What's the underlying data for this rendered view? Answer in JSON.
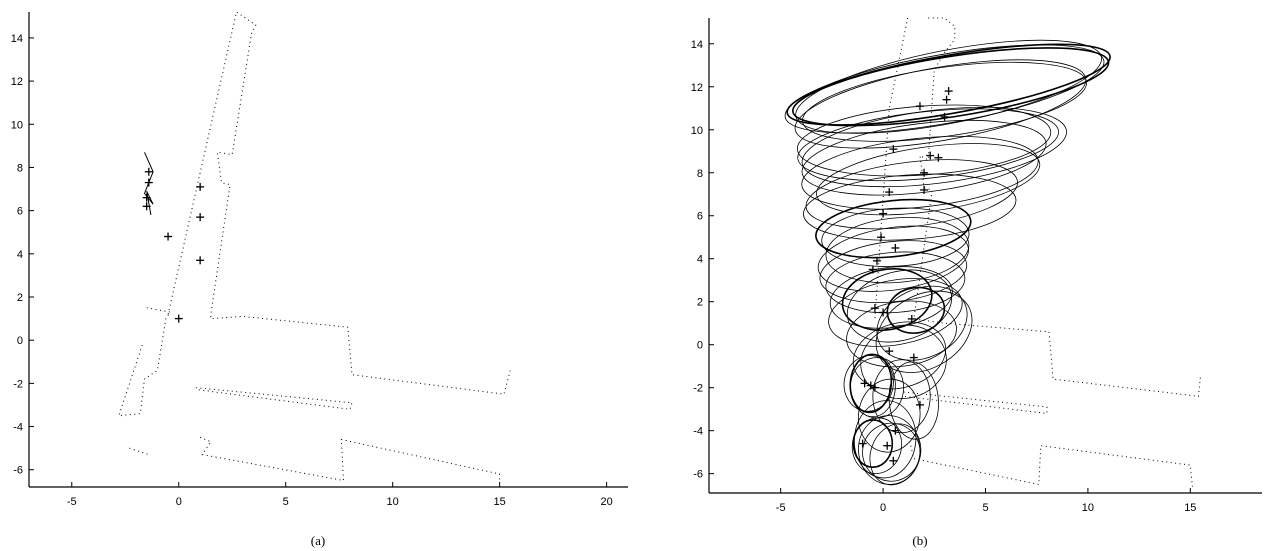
{
  "chart_data": [
    {
      "type": "scatter",
      "caption": "(a)",
      "xlim": [
        -7,
        21
      ],
      "ylim": [
        -6.8,
        15.2
      ],
      "xticks": [
        -5,
        0,
        5,
        10,
        15,
        20
      ],
      "yticks": [
        -6,
        -4,
        -2,
        0,
        2,
        4,
        6,
        8,
        10,
        12,
        14
      ],
      "grid": false,
      "landmarks": [
        {
          "x": 0.0,
          "y": 1.0
        },
        {
          "x": -0.5,
          "y": 4.8
        },
        {
          "x": 1.0,
          "y": 3.7
        },
        {
          "x": 1.0,
          "y": 5.7
        },
        {
          "x": 1.0,
          "y": 7.1
        },
        {
          "x": -1.5,
          "y": 6.2
        },
        {
          "x": -1.5,
          "y": 6.6
        },
        {
          "x": -1.4,
          "y": 7.3
        },
        {
          "x": -1.4,
          "y": 7.8
        }
      ],
      "walls": [
        [
          [
            -0.5,
            1.2
          ],
          [
            2.7,
            15.2
          ],
          [
            3.6,
            14.6
          ],
          [
            3.4,
            14.2
          ],
          [
            2.5,
            8.6
          ],
          [
            1.8,
            8.7
          ],
          [
            2.0,
            7.3
          ],
          [
            2.4,
            7.2
          ],
          [
            1.5,
            1.2
          ],
          [
            1.5,
            1.0
          ],
          [
            3.0,
            1.1
          ],
          [
            7.9,
            0.6
          ],
          [
            8.1,
            -1.6
          ],
          [
            15.2,
            -2.5
          ],
          [
            15.5,
            -1.4
          ]
        ],
        [
          [
            -1.5,
            1.5
          ],
          [
            -0.4,
            1.3
          ],
          [
            -0.6,
            1.0
          ],
          [
            -1.0,
            -1.4
          ],
          [
            -1.6,
            -1.8
          ],
          [
            -1.8,
            -3.4
          ],
          [
            -2.8,
            -3.5
          ],
          [
            -1.7,
            -0.2
          ]
        ],
        [
          [
            0.8,
            -2.2
          ],
          [
            8.1,
            -2.9
          ],
          [
            8.0,
            -3.2
          ],
          [
            0.9,
            -2.3
          ]
        ],
        [
          [
            1.0,
            -4.5
          ],
          [
            1.5,
            -4.7
          ],
          [
            1.1,
            -5.3
          ],
          [
            7.7,
            -6.5
          ],
          [
            7.6,
            -4.6
          ],
          [
            15.0,
            -6.2
          ],
          [
            15.0,
            -6.6
          ]
        ],
        [
          [
            -2.3,
            -5.0
          ],
          [
            -1.4,
            -5.3
          ]
        ]
      ],
      "streaks": [
        [
          [
            -1.6,
            8.7
          ],
          [
            -1.2,
            7.8
          ],
          [
            -1.6,
            6.8
          ],
          [
            -1.2,
            6.3
          ],
          [
            -1.5,
            6.9
          ],
          [
            -1.3,
            5.8
          ]
        ]
      ]
    },
    {
      "type": "scatter",
      "caption": "(b)",
      "xlim": [
        -8.5,
        18.5
      ],
      "ylim": [
        -6.9,
        15.2
      ],
      "xticks": [
        -5,
        0,
        5,
        10,
        15
      ],
      "yticks": [
        -6,
        -4,
        -2,
        0,
        2,
        4,
        6,
        8,
        10,
        12,
        14
      ],
      "grid": false,
      "landmarks": [
        {
          "x": 3.2,
          "y": 11.8
        },
        {
          "x": 3.1,
          "y": 11.4
        },
        {
          "x": 1.8,
          "y": 11.1
        },
        {
          "x": 3.0,
          "y": 10.6
        },
        {
          "x": 0.5,
          "y": 9.1
        },
        {
          "x": 2.3,
          "y": 8.8
        },
        {
          "x": 2.7,
          "y": 8.7
        },
        {
          "x": 2.0,
          "y": 8.0
        },
        {
          "x": 0.3,
          "y": 7.1
        },
        {
          "x": 2.0,
          "y": 7.2
        },
        {
          "x": 0.0,
          "y": 6.1
        },
        {
          "x": -0.1,
          "y": 5.0
        },
        {
          "x": 0.6,
          "y": 4.5
        },
        {
          "x": -0.3,
          "y": 3.9
        },
        {
          "x": -0.5,
          "y": 3.5
        },
        {
          "x": 0.0,
          "y": 1.5
        },
        {
          "x": -0.4,
          "y": 1.7
        },
        {
          "x": 1.4,
          "y": 1.2
        },
        {
          "x": 0.3,
          "y": -0.3
        },
        {
          "x": 1.5,
          "y": -0.6
        },
        {
          "x": -0.9,
          "y": -1.8
        },
        {
          "x": -0.6,
          "y": -1.9
        },
        {
          "x": -0.4,
          "y": -2.0
        },
        {
          "x": 1.8,
          "y": -2.8
        },
        {
          "x": -1.0,
          "y": -4.6
        },
        {
          "x": 0.2,
          "y": -4.7
        },
        {
          "x": 0.5,
          "y": -5.4
        },
        {
          "x": 0.6,
          "y": -4.0
        }
      ],
      "ellipses": [
        {
          "cx": 3.2,
          "cy": 12.1,
          "rx": 8.0,
          "ry": 1.35,
          "angle": -10,
          "bold": true
        },
        {
          "cx": 3.3,
          "cy": 12.0,
          "rx": 7.8,
          "ry": 1.4,
          "angle": -9,
          "bold": true
        },
        {
          "cx": 3.0,
          "cy": 11.9,
          "rx": 7.9,
          "ry": 1.6,
          "angle": -10,
          "bold": false
        },
        {
          "cx": 3.2,
          "cy": 12.0,
          "rx": 7.6,
          "ry": 1.7,
          "angle": -11,
          "bold": false
        },
        {
          "cx": 3.0,
          "cy": 11.3,
          "rx": 7.0,
          "ry": 1.6,
          "angle": -8,
          "bold": false
        },
        {
          "cx": 2.8,
          "cy": 11.2,
          "rx": 7.2,
          "ry": 1.7,
          "angle": -10,
          "bold": false
        },
        {
          "cx": 2.2,
          "cy": 9.3,
          "rx": 6.4,
          "ry": 1.55,
          "angle": -6,
          "bold": false
        },
        {
          "cx": 2.5,
          "cy": 9.2,
          "rx": 6.5,
          "ry": 1.7,
          "angle": -7,
          "bold": false
        },
        {
          "cx": 2.0,
          "cy": 9.5,
          "rx": 6.2,
          "ry": 1.6,
          "angle": -4,
          "bold": false
        },
        {
          "cx": 2.0,
          "cy": 8.7,
          "rx": 6.0,
          "ry": 1.6,
          "angle": -7,
          "bold": false
        },
        {
          "cx": 1.8,
          "cy": 8.0,
          "rx": 5.8,
          "ry": 1.6,
          "angle": -6,
          "bold": false
        },
        {
          "cx": 2.2,
          "cy": 7.7,
          "rx": 5.5,
          "ry": 1.5,
          "angle": -8,
          "bold": false
        },
        {
          "cx": 1.4,
          "cy": 7.0,
          "rx": 5.2,
          "ry": 1.5,
          "angle": -7,
          "bold": false
        },
        {
          "cx": 1.3,
          "cy": 6.4,
          "rx": 5.2,
          "ry": 1.5,
          "angle": -4,
          "bold": false
        },
        {
          "cx": 0.5,
          "cy": 5.4,
          "rx": 3.8,
          "ry": 1.3,
          "angle": -6,
          "bold": true
        },
        {
          "cx": 0.6,
          "cy": 5.0,
          "rx": 3.6,
          "ry": 1.35,
          "angle": -3,
          "bold": false
        },
        {
          "cx": 0.7,
          "cy": 4.4,
          "rx": 3.5,
          "ry": 1.5,
          "angle": -5,
          "bold": false
        },
        {
          "cx": 0.5,
          "cy": 4.0,
          "rx": 3.7,
          "ry": 1.45,
          "angle": -8,
          "bold": false
        },
        {
          "cx": 0.5,
          "cy": 3.4,
          "rx": 3.6,
          "ry": 1.4,
          "angle": -6,
          "bold": false
        },
        {
          "cx": 0.6,
          "cy": 2.9,
          "rx": 3.4,
          "ry": 1.4,
          "angle": -4,
          "bold": false
        },
        {
          "cx": 0.4,
          "cy": 2.2,
          "rx": 3.0,
          "ry": 1.4,
          "angle": -7,
          "bold": false
        },
        {
          "cx": 0.2,
          "cy": 2.1,
          "rx": 2.2,
          "ry": 1.4,
          "angle": -10,
          "bold": true
        },
        {
          "cx": 0.8,
          "cy": 1.8,
          "rx": 2.6,
          "ry": 1.6,
          "angle": -15,
          "bold": false
        },
        {
          "cx": 0.6,
          "cy": 1.5,
          "rx": 3.3,
          "ry": 1.5,
          "angle": -10,
          "bold": false
        },
        {
          "cx": 1.6,
          "cy": 1.6,
          "rx": 1.4,
          "ry": 1.05,
          "angle": -10,
          "bold": true
        },
        {
          "cx": 1.9,
          "cy": 1.0,
          "rx": 2.3,
          "ry": 1.6,
          "angle": -25,
          "bold": false
        },
        {
          "cx": 2.0,
          "cy": 0.6,
          "rx": 2.5,
          "ry": 1.7,
          "angle": -30,
          "bold": false
        },
        {
          "cx": 0.9,
          "cy": 0.5,
          "rx": 2.7,
          "ry": 1.5,
          "angle": -8,
          "bold": false
        },
        {
          "cx": 0.8,
          "cy": -0.5,
          "rx": 2.3,
          "ry": 1.5,
          "angle": -15,
          "bold": false
        },
        {
          "cx": 1.0,
          "cy": -0.8,
          "rx": 2.1,
          "ry": 1.7,
          "angle": -10,
          "bold": false
        },
        {
          "cx": -0.6,
          "cy": -1.8,
          "rx": 1.0,
          "ry": 1.35,
          "angle": 5,
          "bold": true
        },
        {
          "cx": -0.5,
          "cy": -1.9,
          "rx": 1.1,
          "ry": 1.45,
          "angle": 0,
          "bold": false
        },
        {
          "cx": -0.7,
          "cy": -1.8,
          "rx": 1.2,
          "ry": 1.3,
          "angle": 10,
          "bold": false
        },
        {
          "cx": -0.3,
          "cy": -2.0,
          "rx": 1.3,
          "ry": 1.4,
          "angle": 0,
          "bold": false
        },
        {
          "cx": 1.5,
          "cy": -2.6,
          "rx": 1.2,
          "ry": 1.8,
          "angle": -5,
          "bold": false
        },
        {
          "cx": 0.9,
          "cy": -2.4,
          "rx": 1.4,
          "ry": 1.7,
          "angle": 0,
          "bold": false
        },
        {
          "cx": 0.3,
          "cy": -3.3,
          "rx": 1.5,
          "ry": 1.7,
          "angle": 8,
          "bold": false
        },
        {
          "cx": -0.5,
          "cy": -4.6,
          "rx": 0.95,
          "ry": 1.1,
          "angle": 0,
          "bold": true
        },
        {
          "cx": -0.3,
          "cy": -4.7,
          "rx": 1.2,
          "ry": 1.3,
          "angle": 10,
          "bold": false
        },
        {
          "cx": 0.4,
          "cy": -5.0,
          "rx": 1.4,
          "ry": 1.35,
          "angle": 15,
          "bold": false
        },
        {
          "cx": 0.6,
          "cy": -5.1,
          "rx": 1.2,
          "ry": 1.45,
          "angle": 20,
          "bold": false
        },
        {
          "cx": 0.1,
          "cy": -4.4,
          "rx": 1.5,
          "ry": 1.8,
          "angle": 5,
          "bold": false
        },
        {
          "cx": 0.3,
          "cy": -4.9,
          "rx": 1.5,
          "ry": 1.6,
          "angle": -5,
          "bold": false
        }
      ],
      "walls": [
        [
          [
            2.2,
            15.2
          ],
          [
            3.0,
            15.2
          ],
          [
            3.5,
            14.8
          ],
          [
            3.5,
            14.2
          ],
          [
            3.0,
            13.6
          ],
          [
            2.5,
            12.8
          ],
          [
            2.2,
            8.6
          ],
          [
            1.8,
            8.8
          ],
          [
            2.0,
            7.3
          ],
          [
            2.4,
            7.2
          ],
          [
            1.5,
            1.2
          ],
          [
            3.0,
            1.0
          ],
          [
            8.1,
            0.6
          ],
          [
            8.3,
            -1.6
          ],
          [
            15.4,
            -2.4
          ],
          [
            15.5,
            -1.4
          ]
        ],
        [
          [
            1.2,
            15.2
          ],
          [
            0.3,
            11.0
          ],
          [
            -0.4,
            1.2
          ]
        ],
        [
          [
            1.0,
            -2.2
          ],
          [
            8.0,
            -2.9
          ],
          [
            8.0,
            -3.2
          ],
          [
            1.0,
            -2.4
          ]
        ],
        [
          [
            1.3,
            -4.5
          ],
          [
            1.5,
            -5.3
          ],
          [
            7.6,
            -6.5
          ],
          [
            7.7,
            -4.7
          ],
          [
            15.0,
            -5.6
          ],
          [
            15.1,
            -6.6
          ]
        ]
      ]
    }
  ]
}
